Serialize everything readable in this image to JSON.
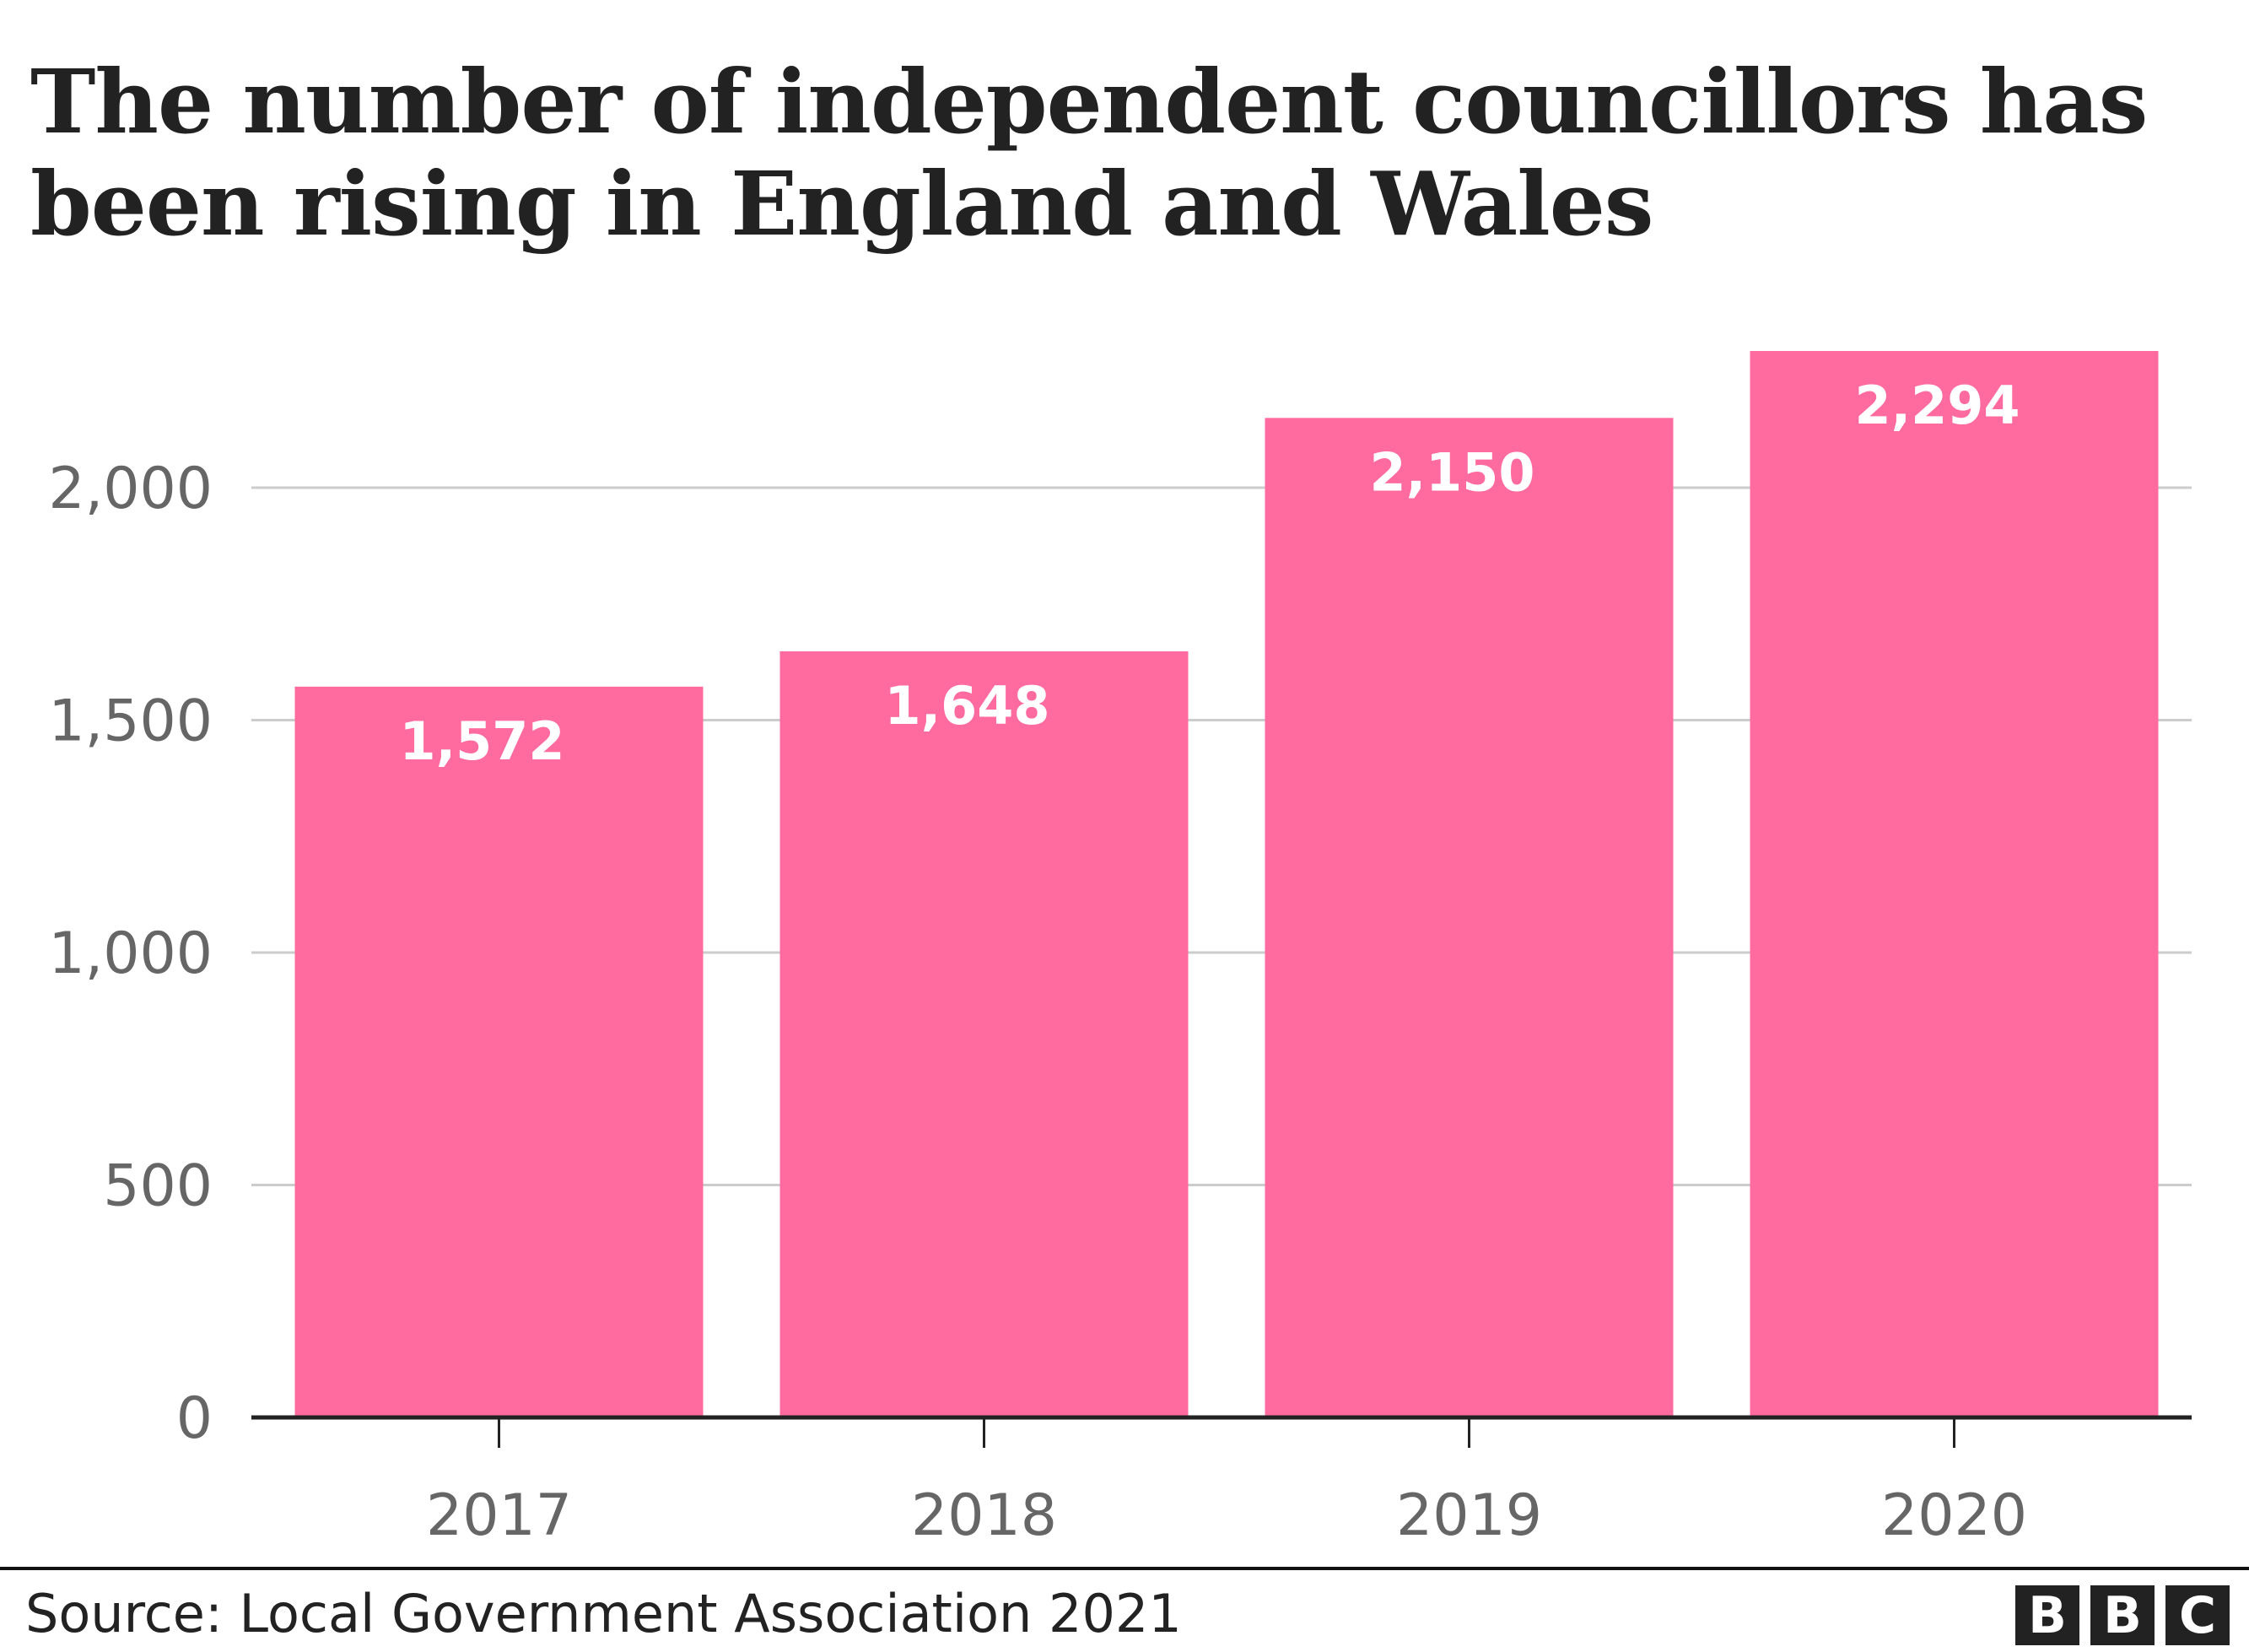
{
  "chart_data": {
    "type": "bar",
    "title": "The number of independent councillors has been rising in England and Wales",
    "categories": [
      "2017",
      "2018",
      "2019",
      "2020"
    ],
    "values": [
      1572,
      1648,
      2150,
      2294
    ],
    "value_labels": [
      "1,572",
      "1,648",
      "2,150",
      "2,294"
    ],
    "yticks": [
      0,
      500,
      1000,
      1500,
      2000
    ],
    "ytick_labels": [
      "0",
      "500",
      "1,000",
      "1,500",
      "2,000"
    ],
    "ylim": [
      0,
      2400
    ],
    "grid": true,
    "bar_color": "#FF6A9F",
    "xlabel": "",
    "ylabel": ""
  },
  "footer": {
    "source": "Source: Local Government Association 2021",
    "logo": [
      "B",
      "B",
      "C"
    ]
  }
}
